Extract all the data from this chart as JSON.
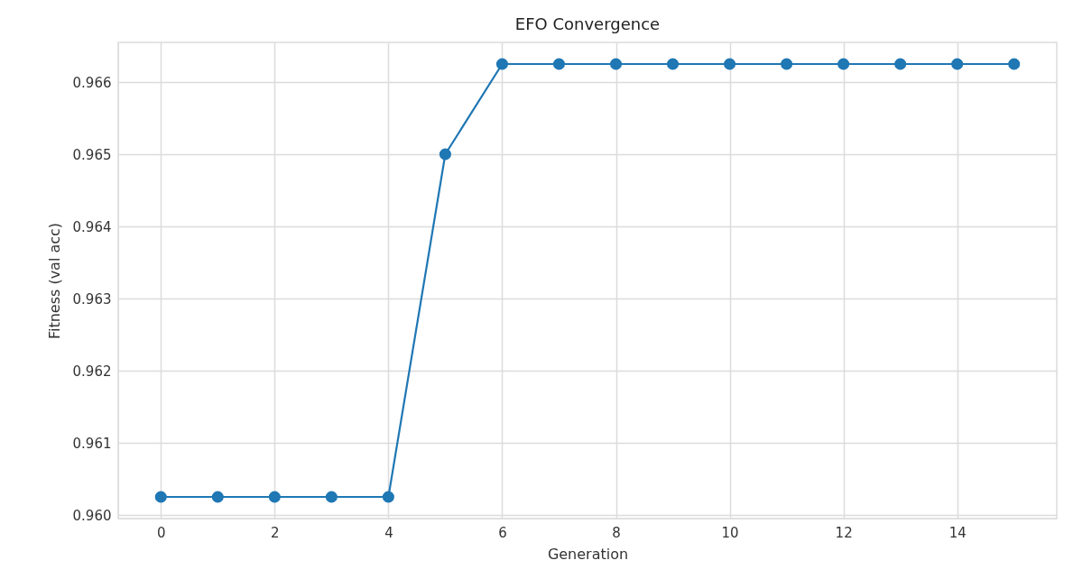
{
  "chart_data": {
    "type": "line",
    "title": "EFO Convergence",
    "xlabel": "Generation",
    "ylabel": "Fitness (val acc)",
    "x": [
      0,
      1,
      2,
      3,
      4,
      5,
      6,
      7,
      8,
      9,
      10,
      11,
      12,
      13,
      14,
      15
    ],
    "series": [
      {
        "color": "#1f77b4",
        "values": [
          0.96025,
          0.96025,
          0.96025,
          0.96025,
          0.96025,
          0.965,
          0.96625,
          0.96625,
          0.96625,
          0.96625,
          0.96625,
          0.96625,
          0.96625,
          0.96625,
          0.96625,
          0.96625
        ]
      }
    ],
    "xlim": [
      -0.75,
      15.75
    ],
    "xticks": [
      0,
      2,
      4,
      6,
      8,
      10,
      12,
      14
    ],
    "ylim": [
      0.95995,
      0.96655
    ],
    "yticks": [
      {
        "value": 0.96,
        "label": "0.960"
      },
      0.961,
      0.962,
      0.963,
      0.964,
      0.965,
      0.966
    ],
    "grid": true,
    "marker": "circle",
    "line_style": "solid"
  }
}
